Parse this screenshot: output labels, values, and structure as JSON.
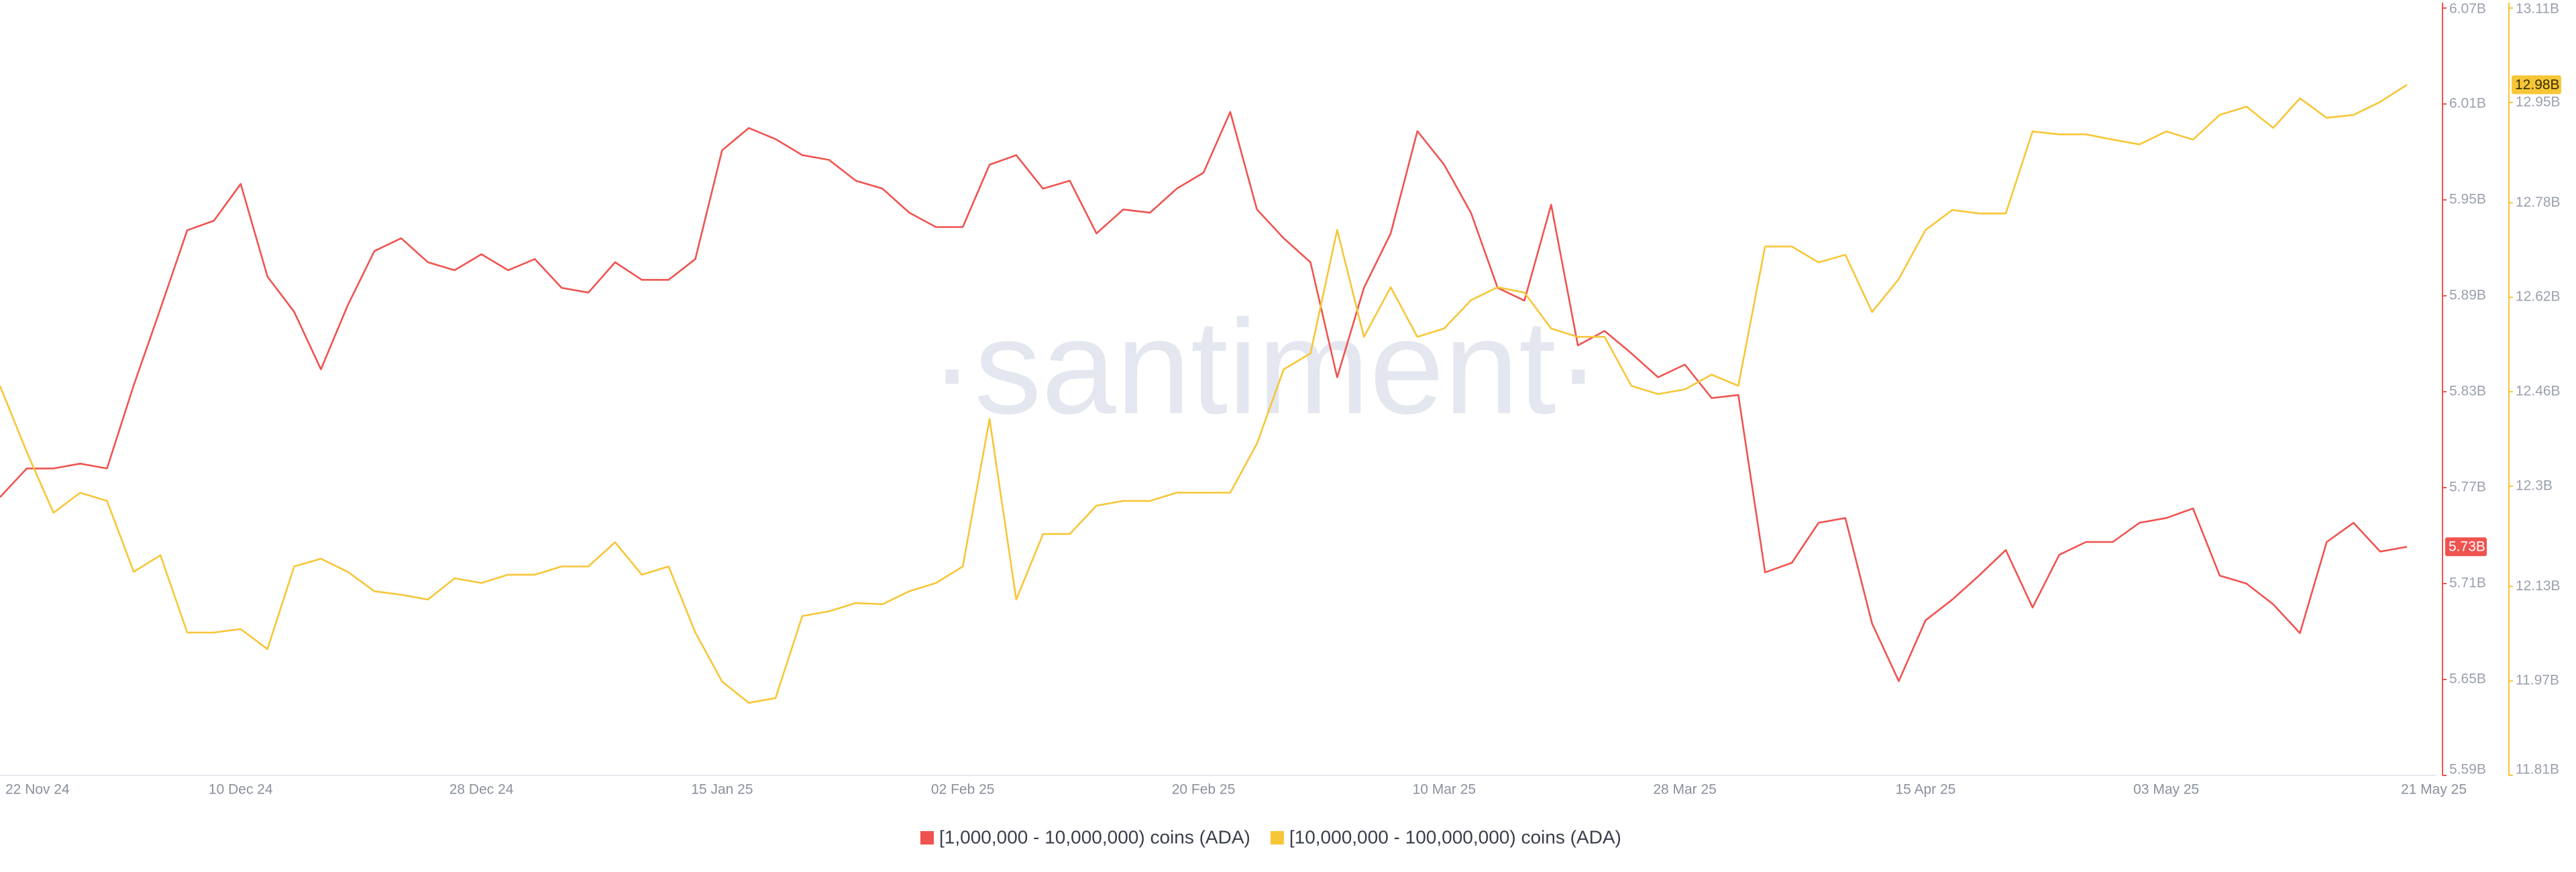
{
  "chart_data": {
    "type": "line",
    "watermark": "·santiment·",
    "categories": [
      "22 Nov 24",
      null,
      null,
      null,
      null,
      null,
      null,
      null,
      null,
      "10 Dec 24",
      null,
      null,
      null,
      null,
      null,
      null,
      null,
      null,
      "28 Dec 24",
      null,
      null,
      null,
      null,
      null,
      null,
      null,
      null,
      "15 Jan 25",
      null,
      null,
      null,
      null,
      null,
      null,
      null,
      null,
      "02 Feb 25",
      null,
      null,
      null,
      null,
      null,
      null,
      null,
      null,
      "20 Feb 25",
      null,
      null,
      null,
      null,
      null,
      null,
      null,
      null,
      "10 Mar 25",
      null,
      null,
      null,
      null,
      null,
      null,
      null,
      null,
      "28 Mar 25",
      null,
      null,
      null,
      null,
      null,
      null,
      null,
      null,
      "15 Apr 25",
      null,
      null,
      null,
      null,
      null,
      null,
      null,
      null,
      "03 May 25",
      null,
      null,
      null,
      null,
      null,
      null,
      null,
      null,
      "21 May 25"
    ],
    "ylim": [
      5.59,
      6.07
    ],
    "yticks": [
      {
        "value": 5.59,
        "label": "5.59B"
      },
      {
        "value": 5.65,
        "label": "5.65B"
      },
      {
        "value": 5.71,
        "label": "5.71B"
      },
      {
        "value": 5.77,
        "label": "5.77B"
      },
      {
        "value": 5.83,
        "label": "5.83B"
      },
      {
        "value": 5.89,
        "label": "5.89B"
      },
      {
        "value": 5.95,
        "label": "5.95B"
      },
      {
        "value": 6.01,
        "label": "6.01B"
      },
      {
        "value": 6.07,
        "label": "6.07B"
      }
    ],
    "y2lim": [
      11.81,
      13.11
    ],
    "y2ticks": [
      {
        "value": 11.81,
        "label": "11.81B"
      },
      {
        "value": 11.97,
        "label": "11.97B"
      },
      {
        "value": 12.13,
        "label": "12.13B"
      },
      {
        "value": 12.3,
        "label": "12.3B"
      },
      {
        "value": 12.46,
        "label": "12.46B"
      },
      {
        "value": 12.62,
        "label": "12.62B"
      },
      {
        "value": 12.78,
        "label": "12.78B"
      },
      {
        "value": 12.95,
        "label": "12.95B"
      },
      {
        "value": 13.11,
        "label": "13.11B"
      }
    ],
    "series": [
      {
        "name": "[1,000,000 - 10,000,000) coins (ADA)",
        "color": "#ef5350",
        "axis": "y",
        "values": [
          5.764,
          5.782,
          5.782,
          5.785,
          5.782,
          5.834,
          5.882,
          5.931,
          5.937,
          5.96,
          5.902,
          5.88,
          5.844,
          5.884,
          5.918,
          5.926,
          5.911,
          5.906,
          5.916,
          5.906,
          5.913,
          5.895,
          5.892,
          5.911,
          5.9,
          5.9,
          5.913,
          5.981,
          5.995,
          5.988,
          5.978,
          5.975,
          5.962,
          5.957,
          5.942,
          5.933,
          5.933,
          5.972,
          5.978,
          5.957,
          5.962,
          5.929,
          5.944,
          5.942,
          5.957,
          5.967,
          6.005,
          5.944,
          5.926,
          5.911,
          5.839,
          5.895,
          5.929,
          5.993,
          5.972,
          5.942,
          5.895,
          5.887,
          5.947,
          5.859,
          5.868,
          5.854,
          5.839,
          5.847,
          5.826,
          5.828,
          5.717,
          5.723,
          5.748,
          5.751,
          5.685,
          5.649,
          5.687,
          5.7,
          5.715,
          5.731,
          5.695,
          5.728,
          5.736,
          5.736,
          5.748,
          5.751,
          5.757,
          5.715,
          5.71,
          5.697,
          5.679,
          5.736,
          5.748,
          5.73,
          5.733
        ],
        "value_labels": [
          null,
          null,
          null,
          null,
          null,
          null,
          null,
          null,
          null,
          null,
          null,
          null,
          null,
          null,
          null,
          null,
          null,
          null,
          null,
          null,
          null,
          null,
          null,
          null,
          null,
          null,
          null,
          null,
          null,
          null,
          null,
          null,
          null,
          null,
          null,
          null,
          null,
          null,
          null,
          null,
          null,
          null,
          null,
          null,
          null,
          null,
          null,
          null,
          null,
          null,
          null,
          null,
          null,
          null,
          null,
          null,
          null,
          null,
          null,
          null,
          null,
          null,
          null,
          null,
          null,
          null,
          null,
          null,
          null,
          null,
          null,
          null,
          null,
          null,
          null,
          null,
          null,
          null,
          null,
          null,
          null,
          null,
          null,
          null,
          null,
          null,
          null,
          null,
          null,
          null,
          "5.73B"
        ]
      },
      {
        "name": "[10,000,000 - 100,000,000) coins (ADA)",
        "color": "#f7c637",
        "axis": "y2",
        "values": [
          12.47,
          12.358,
          12.255,
          12.289,
          12.275,
          12.155,
          12.183,
          12.052,
          12.052,
          12.058,
          12.024,
          12.164,
          12.177,
          12.155,
          12.122,
          12.116,
          12.108,
          12.144,
          12.136,
          12.15,
          12.15,
          12.164,
          12.164,
          12.205,
          12.15,
          12.164,
          12.052,
          11.969,
          11.933,
          11.941,
          12.08,
          12.088,
          12.102,
          12.1,
          12.122,
          12.136,
          12.164,
          12.414,
          12.108,
          12.219,
          12.219,
          12.267,
          12.275,
          12.275,
          12.289,
          12.289,
          12.289,
          12.372,
          12.498,
          12.525,
          12.734,
          12.553,
          12.637,
          12.553,
          12.567,
          12.615,
          12.637,
          12.628,
          12.567,
          12.553,
          12.553,
          12.47,
          12.456,
          12.464,
          12.489,
          12.47,
          12.706,
          12.706,
          12.679,
          12.692,
          12.595,
          12.651,
          12.734,
          12.768,
          12.762,
          12.762,
          12.901,
          12.896,
          12.896,
          12.887,
          12.879,
          12.901,
          12.887,
          12.929,
          12.943,
          12.907,
          12.957,
          12.924,
          12.929,
          12.951,
          12.98
        ],
        "value_labels": [
          null,
          null,
          null,
          null,
          null,
          null,
          null,
          null,
          null,
          null,
          null,
          null,
          null,
          null,
          null,
          null,
          null,
          null,
          null,
          null,
          null,
          null,
          null,
          null,
          null,
          null,
          null,
          null,
          null,
          null,
          null,
          null,
          null,
          null,
          null,
          null,
          null,
          null,
          null,
          null,
          null,
          null,
          null,
          null,
          null,
          null,
          null,
          null,
          null,
          null,
          null,
          null,
          null,
          null,
          null,
          null,
          null,
          null,
          null,
          null,
          null,
          null,
          null,
          null,
          null,
          null,
          null,
          null,
          null,
          null,
          null,
          null,
          null,
          null,
          null,
          null,
          null,
          null,
          null,
          null,
          null,
          null,
          null,
          null,
          null,
          null,
          null,
          null,
          null,
          null,
          "12.98B"
        ]
      }
    ]
  }
}
